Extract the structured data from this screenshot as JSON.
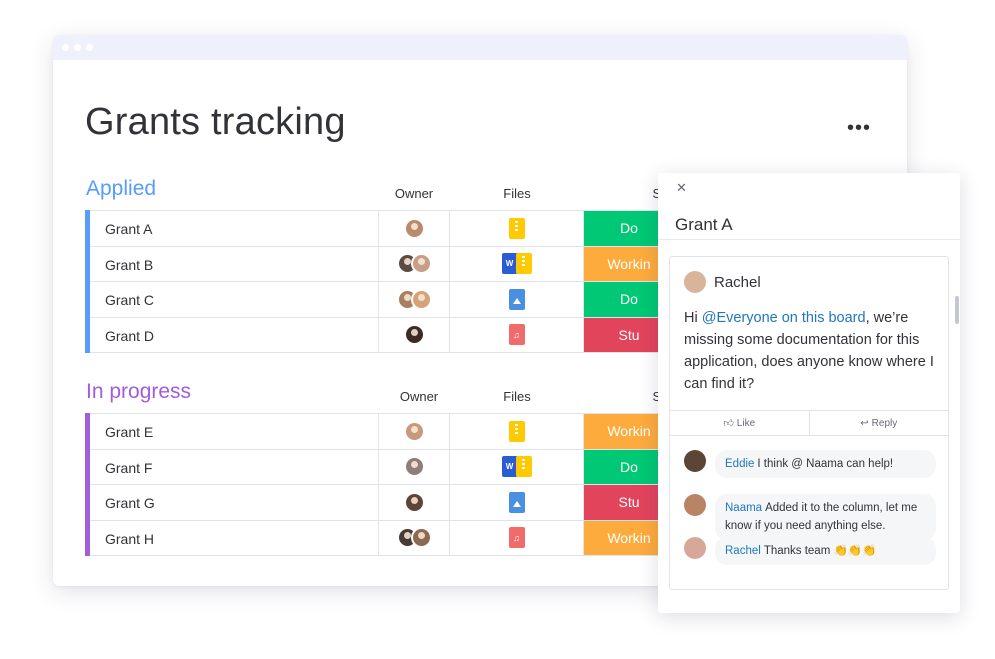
{
  "board": {
    "title": "Grants tracking",
    "more_label": "•••"
  },
  "columns": {
    "owner": "Owner",
    "files": "Files",
    "status": "Stat"
  },
  "status_colors": {
    "Done": "#00c875",
    "Working": "#fdab3d",
    "Stuck": "#e2445c"
  },
  "groups": [
    {
      "title": "Applied",
      "color": "#579bfc",
      "rows": [
        {
          "name": "Grant A",
          "owners": [
            "#b98a6c"
          ],
          "files": [
            "zip"
          ],
          "status": "Done",
          "status_label": "Do"
        },
        {
          "name": "Grant B",
          "owners": [
            "#5c4a43",
            "#c99e86"
          ],
          "files": [
            "word",
            "zip"
          ],
          "status": "Working",
          "status_label": "Workin"
        },
        {
          "name": "Grant C",
          "owners": [
            "#a77e62",
            "#d6a27a"
          ],
          "files": [
            "image"
          ],
          "status": "Done",
          "status_label": "Do"
        },
        {
          "name": "Grant D",
          "owners": [
            "#3c2b25"
          ],
          "files": [
            "audio"
          ],
          "status": "Stuck",
          "status_label": "Stu"
        }
      ]
    },
    {
      "title": "In progress",
      "color": "#a25ddc",
      "rows": [
        {
          "name": "Grant E",
          "owners": [
            "#c59a7d"
          ],
          "files": [
            "zip"
          ],
          "status": "Working",
          "status_label": "Workin"
        },
        {
          "name": "Grant F",
          "owners": [
            "#8f7d7a"
          ],
          "files": [
            "word",
            "zip"
          ],
          "status": "Done",
          "status_label": "Do"
        },
        {
          "name": "Grant G",
          "owners": [
            "#5d4637"
          ],
          "files": [
            "image"
          ],
          "status": "Stuck",
          "status_label": "Stu"
        },
        {
          "name": "Grant H",
          "owners": [
            "#4a3a35",
            "#8c6a52"
          ],
          "files": [
            "audio"
          ],
          "status": "Working",
          "status_label": "Workin"
        }
      ]
    }
  ],
  "file_colors": {
    "zip": "#ffcb00",
    "word": "#2b5cd4",
    "image": "#4a90e2",
    "audio": "#f06b6b"
  },
  "panel": {
    "close_label": "✕",
    "title": "Grant A",
    "post": {
      "author": "Rachel",
      "greeting": "Hi ",
      "mention": "@Everyone on this board",
      "body": ", we’re missing some documentation for this application, does anyone know where I can find it?"
    },
    "actions": {
      "like": "Like",
      "reply": "Reply"
    },
    "replies": [
      {
        "author": "Eddie",
        "text": "I think @ Naama can help!",
        "avatar": "#5a4536"
      },
      {
        "author": "Naama",
        "text": "Added it to the column, let me know if you need anything else.",
        "avatar": "#b98466"
      },
      {
        "author": "Rachel",
        "text": "Thanks team 👏👏👏",
        "avatar": "#d7a79a"
      }
    ]
  }
}
